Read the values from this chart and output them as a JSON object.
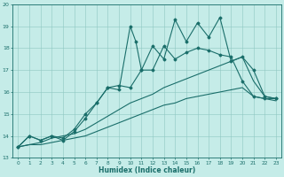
{
  "xlabel": "Humidex (Indice chaleur)",
  "xlim": [
    -0.5,
    23.5
  ],
  "ylim": [
    13,
    20
  ],
  "xticks": [
    0,
    1,
    2,
    3,
    4,
    5,
    6,
    7,
    8,
    9,
    10,
    11,
    12,
    13,
    14,
    15,
    16,
    17,
    18,
    19,
    20,
    21,
    22,
    23
  ],
  "yticks": [
    13,
    14,
    15,
    16,
    17,
    18,
    19,
    20
  ],
  "bg_color": "#c5ece8",
  "grid_color": "#8ec8c2",
  "line_color": "#1a6e6a",
  "line_jagged_x": [
    0,
    1,
    2,
    3,
    4,
    5,
    6,
    7,
    8,
    9,
    10,
    10.5,
    11,
    12,
    13,
    14,
    15,
    16,
    17,
    18,
    19,
    20,
    21,
    22,
    23
  ],
  "line_jagged_y": [
    13.5,
    14.0,
    13.8,
    14.0,
    13.8,
    14.2,
    14.8,
    15.5,
    16.2,
    16.1,
    19.0,
    18.3,
    17.0,
    18.1,
    17.5,
    19.3,
    18.3,
    19.15,
    18.5,
    19.4,
    17.4,
    17.6,
    17.0,
    15.8,
    15.7
  ],
  "line_smooth_x": [
    0,
    1,
    2,
    3,
    4,
    5,
    6,
    7,
    8,
    9,
    10,
    11,
    12,
    13,
    14,
    15,
    16,
    17,
    18,
    19,
    20,
    21,
    22,
    23
  ],
  "line_smooth_y": [
    13.5,
    14.0,
    13.8,
    14.0,
    13.9,
    14.3,
    15.0,
    15.5,
    16.2,
    16.3,
    16.2,
    17.0,
    17.0,
    18.1,
    17.5,
    17.8,
    18.0,
    17.9,
    17.7,
    17.6,
    16.5,
    15.8,
    15.7,
    15.7
  ],
  "line_upper_x": [
    0,
    1,
    2,
    3,
    4,
    5,
    6,
    7,
    8,
    9,
    10,
    11,
    12,
    13,
    14,
    15,
    16,
    17,
    18,
    19,
    20,
    21,
    22,
    23
  ],
  "line_upper_y": [
    13.5,
    13.6,
    13.7,
    13.9,
    14.0,
    14.1,
    14.3,
    14.6,
    14.9,
    15.2,
    15.5,
    15.7,
    15.9,
    16.2,
    16.4,
    16.6,
    16.8,
    17.0,
    17.2,
    17.4,
    17.6,
    16.5,
    15.8,
    15.7
  ],
  "line_lower_x": [
    0,
    1,
    2,
    3,
    4,
    5,
    6,
    7,
    8,
    9,
    10,
    11,
    12,
    13,
    14,
    15,
    16,
    17,
    18,
    19,
    20,
    21,
    22,
    23
  ],
  "line_lower_y": [
    13.5,
    13.6,
    13.6,
    13.7,
    13.8,
    13.9,
    14.0,
    14.2,
    14.4,
    14.6,
    14.8,
    15.0,
    15.2,
    15.4,
    15.5,
    15.7,
    15.8,
    15.9,
    16.0,
    16.1,
    16.2,
    15.8,
    15.7,
    15.6
  ]
}
